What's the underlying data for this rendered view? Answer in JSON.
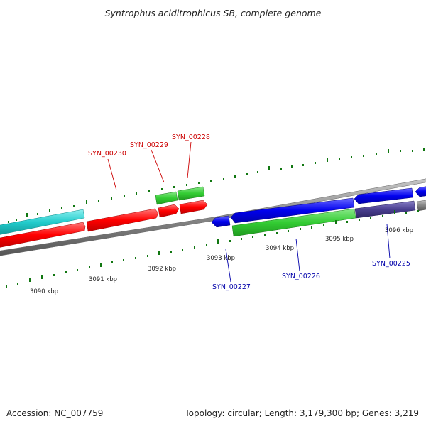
{
  "title": "Syntrophus aciditrophicus SB, complete genome",
  "footer": {
    "accession": "Accession: NC_007759",
    "summary": "Topology: circular; Length: 3,179,300 bp; Genes: 3,219"
  },
  "ticks": [
    {
      "label": "3090 kbp",
      "kbp": 3090
    },
    {
      "label": "3091 kbp",
      "kbp": 3091
    },
    {
      "label": "3092 kbp",
      "kbp": 3092
    },
    {
      "label": "3093 kbp",
      "kbp": 3093
    },
    {
      "label": "3094 kbp",
      "kbp": 3094
    },
    {
      "label": "3095 kbp",
      "kbp": 3095
    },
    {
      "label": "3096 kbp",
      "kbp": 3096
    }
  ],
  "gene_labels": [
    {
      "label": "SYN_00230",
      "strand": "forward"
    },
    {
      "label": "SYN_00229",
      "strand": "forward"
    },
    {
      "label": "SYN_00228",
      "strand": "forward"
    },
    {
      "label": "SYN_00227",
      "strand": "reverse"
    },
    {
      "label": "SYN_00226",
      "strand": "reverse"
    },
    {
      "label": "SYN_00225",
      "strand": "reverse"
    }
  ],
  "colors": {
    "forward_cds": "#ff0000",
    "forward_rna": "#33cc33",
    "reverse_cds": "#0000ee",
    "reverse_rna": "#33cc33",
    "other_feature": "#22cccc",
    "misc_feature": "#4a3f8f",
    "backbone": "#888888",
    "tick_marks": "#117711",
    "forward_label": "#cc0000",
    "reverse_label": "#0000aa"
  }
}
